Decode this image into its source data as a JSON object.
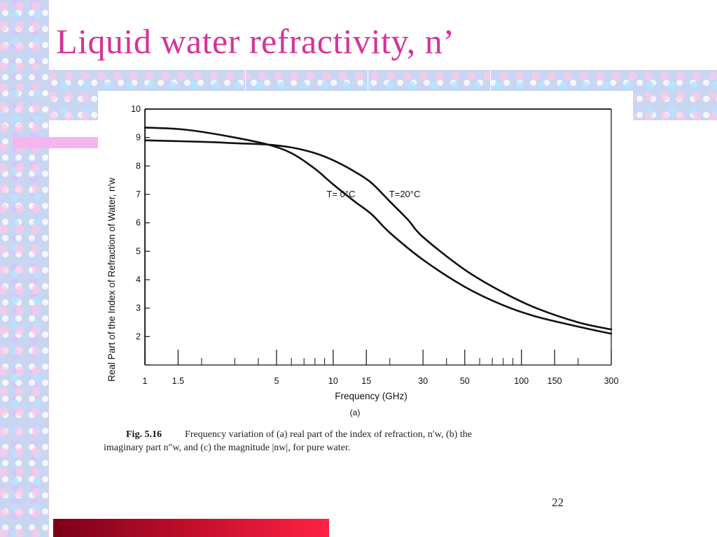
{
  "slide": {
    "title": "Liquid water refractivity, n’",
    "page_number": "22",
    "colors": {
      "title": "#d6339a",
      "accent_bar": "#c8102e",
      "pink_bar": "#f5b5ef",
      "texture": "#c9d6f2"
    }
  },
  "figure": {
    "caption_label": "Fig. 5.16",
    "caption_line1": "Frequency variation of (a) real part of the index of refraction, n′w, (b) the",
    "caption_line2": "imaginary part n″w, and (c) the magnitude |nw|, for pure water."
  },
  "chart_data": {
    "type": "line",
    "title": "",
    "panel_label": "(a)",
    "xlabel": "Frequency (GHz)",
    "ylabel": "Real Part of the Index of Refraction of Water, n′w",
    "x_scale": "log",
    "xlim": [
      1,
      300
    ],
    "ylim": [
      1,
      10
    ],
    "x_ticks": [
      1,
      1.5,
      5,
      10,
      15,
      30,
      50,
      100,
      150,
      300
    ],
    "x_tick_labels": [
      "1",
      "1.5",
      "5",
      "10",
      "15",
      "30",
      "50",
      "100",
      "150",
      "300"
    ],
    "y_ticks": [
      1,
      2,
      3,
      4,
      5,
      6,
      7,
      8,
      9,
      10
    ],
    "y_tick_labels": [
      "",
      "2",
      "3",
      "4",
      "5",
      "6",
      "7",
      "8",
      "9",
      "10"
    ],
    "grid": false,
    "series": [
      {
        "name": "T= 0°C",
        "x": [
          1,
          1.5,
          2,
          3,
          4.5,
          6,
          8,
          10,
          13,
          16,
          20,
          30,
          50,
          80,
          120,
          200,
          300
        ],
        "y": [
          9.35,
          9.3,
          9.2,
          9.0,
          8.75,
          8.45,
          7.9,
          7.35,
          6.75,
          6.3,
          5.65,
          4.7,
          3.75,
          3.1,
          2.7,
          2.35,
          2.1
        ]
      },
      {
        "name": "T=20°C",
        "x": [
          1,
          2,
          3,
          4.5,
          6,
          8,
          10,
          13,
          16,
          20,
          25,
          30,
          50,
          80,
          120,
          200,
          300
        ],
        "y": [
          8.9,
          8.85,
          8.8,
          8.75,
          8.65,
          8.45,
          8.2,
          7.8,
          7.4,
          6.75,
          6.1,
          5.5,
          4.35,
          3.55,
          3.0,
          2.5,
          2.25
        ]
      }
    ],
    "annotations": [
      {
        "text": "T= 0°C",
        "x": 11,
        "y": 7.0
      },
      {
        "text": "T=20°C",
        "x": 24,
        "y": 7.0
      }
    ]
  }
}
